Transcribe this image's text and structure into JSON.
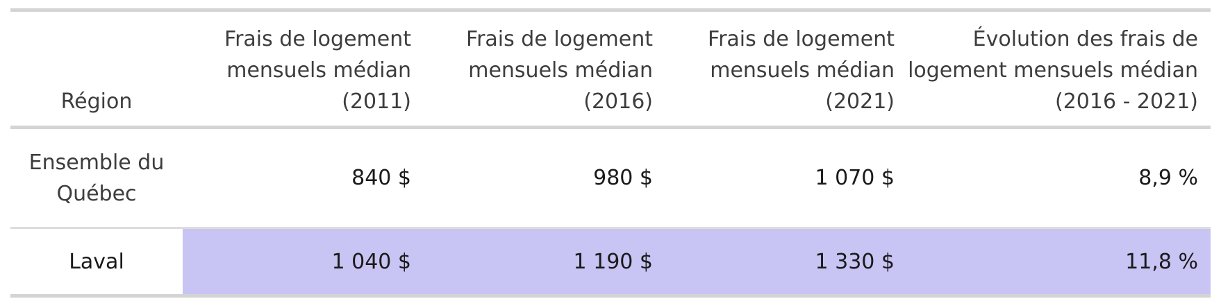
{
  "table": {
    "headers": [
      "Région",
      "Frais de logement mensuels médian (2011)",
      "Frais de logement mensuels médian (2016)",
      "Frais de logement mensuels médian (2021)",
      "Évolution des frais de logement mensuels médian (2016 - 2021)"
    ],
    "rows": [
      {
        "region": "Ensemble du Québec",
        "y2011": "840 $",
        "y2016": "980 $",
        "y2021": "1 070 $",
        "evolution": "8,9 %"
      },
      {
        "region": "Laval",
        "y2011": "1 040 $",
        "y2016": "1 190 $",
        "y2021": "1 330 $",
        "evolution": "11,8 %"
      }
    ],
    "highlight_color": "#c8c4f4"
  }
}
